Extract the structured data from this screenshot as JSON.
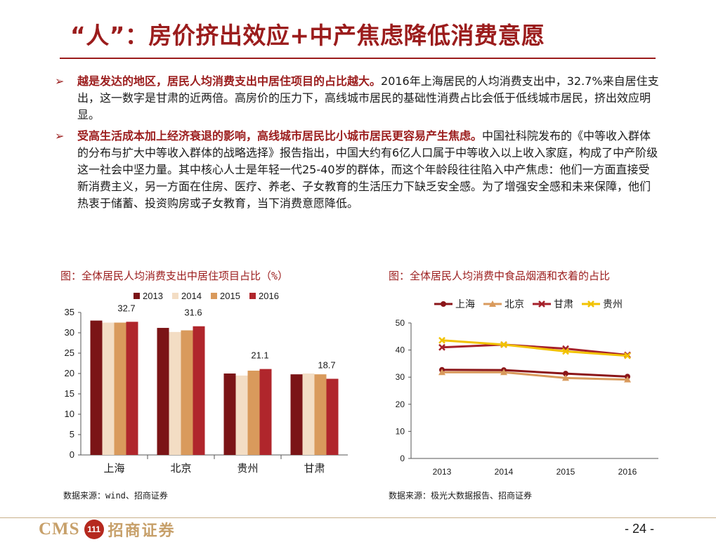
{
  "header": {
    "title": "“人”：房价挤出效应+中产焦虑降低消费意愿"
  },
  "bullets": [
    {
      "lead": "越是发达的地区，居民人均消费支出中居住项目的占比越大。",
      "body": "2016年上海居民的人均消费支出中，32.7%来自居住支出，这一数字是甘肃的近两倍。高房价的压力下，高线城市居民的基础性消费占比会低于低线城市居民，挤出效应明显。"
    },
    {
      "lead": "受高生活成本加上经济衰退的影响，高线城市居民比小城市居民更容易产生焦虑。",
      "body": "中国社科院发布的《中等收入群体的分布与扩大中等收入群体的战略选择》报告指出，中国大约有6亿人口属于中等收入以上收入家庭，构成了中产阶级这一社会中坚力量。其中核心人士是年轻一代25-40岁的群体，而这个年龄段往往陷入中产焦虑：他们一方面直接受新消费主义，另一方面在住房、医疗、养老、子女教育的生活压力下缺乏安全感。为了增强安全感和未来保障，他们热衷于储蓄、投资购房或子女教育，当下消费意愿降低。"
    }
  ],
  "figures": {
    "left": {
      "title": "图：全体居民人均消费支出中居住项目占比（%）",
      "source": "数据来源：wind、招商证券"
    },
    "right": {
      "title": "图：全体居民人均消费中食品烟酒和衣着的占比",
      "source": "数据来源：极光大数据报告、招商证券"
    }
  },
  "chart_data": [
    {
      "type": "bar",
      "categories": [
        "上海",
        "北京",
        "贵州",
        "甘肃"
      ],
      "series": [
        {
          "name": "2013",
          "values": [
            33.0,
            31.2,
            20.0,
            19.8
          ],
          "color": "#7b1416"
        },
        {
          "name": "2014",
          "values": [
            32.5,
            30.2,
            19.5,
            20.0
          ],
          "color": "#f3ddc4"
        },
        {
          "name": "2015",
          "values": [
            32.5,
            30.6,
            20.7,
            19.8
          ],
          "color": "#d99a5c"
        },
        {
          "name": "2016",
          "values": [
            32.7,
            31.6,
            21.1,
            18.7
          ],
          "color": "#b0262c"
        }
      ],
      "data_labels": {
        "series": "2016",
        "values": [
          "32.7",
          "31.6",
          "21.1",
          "18.7"
        ]
      },
      "yticks": [
        "0",
        "5",
        "10",
        "15",
        "20",
        "25",
        "30",
        "35"
      ],
      "ylim": [
        0,
        35
      ],
      "grid": false,
      "legend": "top"
    },
    {
      "type": "line",
      "x": [
        "2013",
        "2014",
        "2015",
        "2016"
      ],
      "series": [
        {
          "name": "上海",
          "values": [
            32.7,
            32.6,
            31.3,
            30.2
          ],
          "color": "#8b1519",
          "marker": "circle"
        },
        {
          "name": "北京",
          "values": [
            31.8,
            31.8,
            29.7,
            29.1
          ],
          "color": "#d99a5c",
          "marker": "triangle"
        },
        {
          "name": "甘肃",
          "values": [
            41.0,
            42.0,
            40.5,
            38.2
          ],
          "color": "#a5202a",
          "marker": "x"
        },
        {
          "name": "贵州",
          "values": [
            43.6,
            42.0,
            39.5,
            37.9
          ],
          "color": "#f2c200",
          "marker": "x"
        }
      ],
      "yticks": [
        "0",
        "10",
        "20",
        "30",
        "40",
        "50"
      ],
      "ylim": [
        0,
        50
      ],
      "grid": false,
      "legend": "top"
    }
  ],
  "footer": {
    "logo_text": "CMS",
    "logo_badge": "111",
    "logo_cn": "招商证券",
    "page": "- 24 -"
  }
}
